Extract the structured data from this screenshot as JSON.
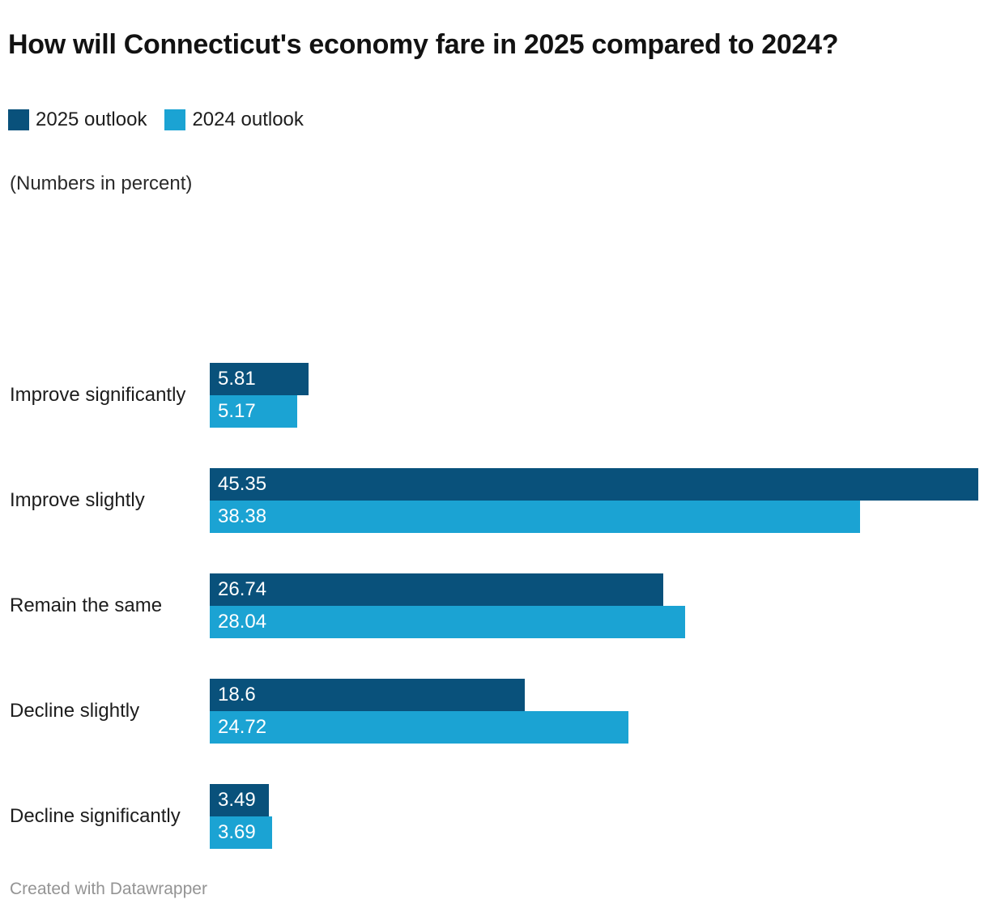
{
  "header": {
    "title": "How will Connecticut's economy fare in 2025 compared to 2024?",
    "subtitle": "(Numbers in percent)"
  },
  "legend": {
    "items": [
      {
        "label": "2025 outlook",
        "color": "#09517b"
      },
      {
        "label": "2024 outlook",
        "color": "#1ba3d3"
      }
    ]
  },
  "chart_data": {
    "type": "bar",
    "orientation": "horizontal",
    "title": "How will Connecticut's economy fare in 2025 compared to 2024?",
    "subtitle": "(Numbers in percent)",
    "unit": "percent",
    "categories": [
      "Improve significantly",
      "Improve slightly",
      "Remain the same",
      "Decline slightly",
      "Decline significantly"
    ],
    "series": [
      {
        "name": "2025 outlook",
        "color": "#09517b",
        "values": [
          5.81,
          45.35,
          26.74,
          18.6,
          3.49
        ]
      },
      {
        "name": "2024 outlook",
        "color": "#1ba3d3",
        "values": [
          5.17,
          38.38,
          28.04,
          24.72,
          3.69
        ]
      }
    ],
    "xlim": [
      0,
      45.35
    ],
    "grid": false,
    "legend_position": "top",
    "value_labels": "inside-start",
    "value_label_color": "#ffffff"
  },
  "footer": {
    "credit": "Created with Datawrapper"
  }
}
